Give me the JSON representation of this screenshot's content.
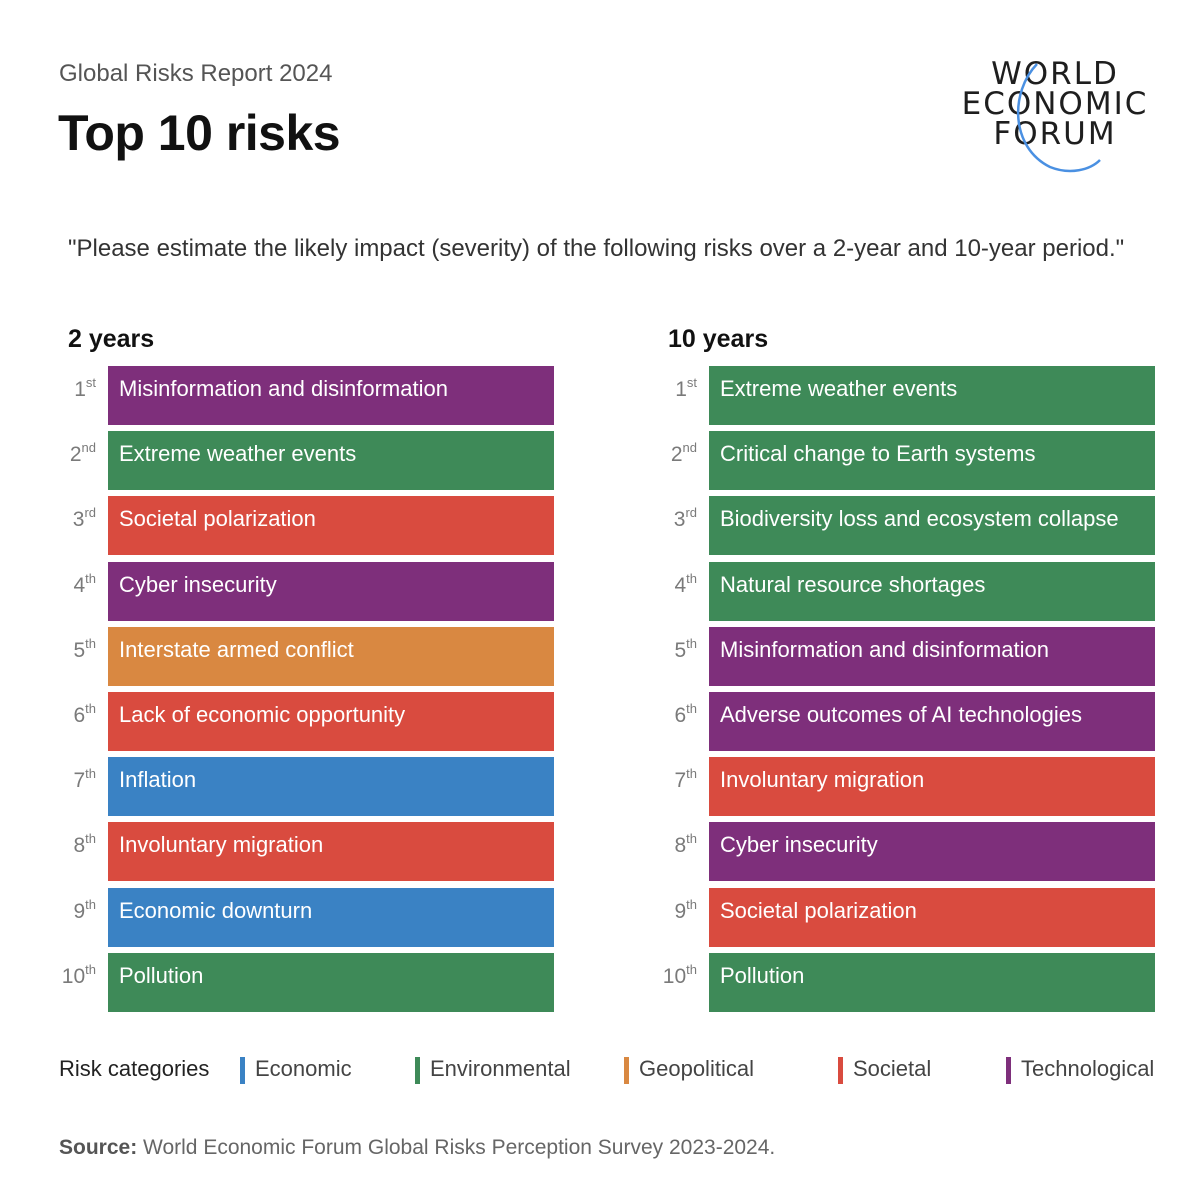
{
  "header": {
    "subtitle": "Global Risks Report 2024",
    "title": "Top 10 risks"
  },
  "logo": {
    "lines": [
      "WORLD",
      "ECONOMIC",
      "FORUM"
    ],
    "arc_color": "#4a90e2"
  },
  "question": "\"Please estimate the likely impact (severity) of the following risks over a 2-year and 10-year period.\"",
  "colors": {
    "Economic": "#3a82c4",
    "Environmental": "#3e8a58",
    "Geopolitical": "#d98841",
    "Societal": "#d94b3f",
    "Technological": "#7e2f7b"
  },
  "chart_data": {
    "type": "table",
    "title": "Top 10 risks",
    "columns": [
      {
        "title": "2 years",
        "rows": [
          {
            "rank": "1",
            "suffix": "st",
            "label": "Misinformation and disinformation",
            "category": "Technological"
          },
          {
            "rank": "2",
            "suffix": "nd",
            "label": "Extreme weather events",
            "category": "Environmental"
          },
          {
            "rank": "3",
            "suffix": "rd",
            "label": "Societal polarization",
            "category": "Societal"
          },
          {
            "rank": "4",
            "suffix": "th",
            "label": "Cyber insecurity",
            "category": "Technological"
          },
          {
            "rank": "5",
            "suffix": "th",
            "label": "Interstate armed conflict",
            "category": "Geopolitical"
          },
          {
            "rank": "6",
            "suffix": "th",
            "label": "Lack of economic opportunity",
            "category": "Societal"
          },
          {
            "rank": "7",
            "suffix": "th",
            "label": "Inflation",
            "category": "Economic"
          },
          {
            "rank": "8",
            "suffix": "th",
            "label": "Involuntary migration",
            "category": "Societal"
          },
          {
            "rank": "9",
            "suffix": "th",
            "label": "Economic downturn",
            "category": "Economic"
          },
          {
            "rank": "10",
            "suffix": "th",
            "label": "Pollution",
            "category": "Environmental"
          }
        ]
      },
      {
        "title": "10 years",
        "rows": [
          {
            "rank": "1",
            "suffix": "st",
            "label": "Extreme weather events",
            "category": "Environmental"
          },
          {
            "rank": "2",
            "suffix": "nd",
            "label": "Critical change to Earth systems",
            "category": "Environmental"
          },
          {
            "rank": "3",
            "suffix": "rd",
            "label": "Biodiversity loss and ecosystem collapse",
            "category": "Environmental"
          },
          {
            "rank": "4",
            "suffix": "th",
            "label": "Natural resource shortages",
            "category": "Environmental"
          },
          {
            "rank": "5",
            "suffix": "th",
            "label": "Misinformation and disinformation",
            "category": "Technological"
          },
          {
            "rank": "6",
            "suffix": "th",
            "label": "Adverse outcomes of AI technologies",
            "category": "Technological"
          },
          {
            "rank": "7",
            "suffix": "th",
            "label": "Involuntary migration",
            "category": "Societal"
          },
          {
            "rank": "8",
            "suffix": "th",
            "label": "Cyber insecurity",
            "category": "Technological"
          },
          {
            "rank": "9",
            "suffix": "th",
            "label": "Societal polarization",
            "category": "Societal"
          },
          {
            "rank": "10",
            "suffix": "th",
            "label": "Pollution",
            "category": "Environmental"
          }
        ]
      }
    ]
  },
  "legend": {
    "label": "Risk categories",
    "items": [
      "Economic",
      "Environmental",
      "Geopolitical",
      "Societal",
      "Technological"
    ]
  },
  "source": {
    "label": "Source:",
    "text": " World Economic Forum Global Risks Perception Survey 2023-2024."
  }
}
